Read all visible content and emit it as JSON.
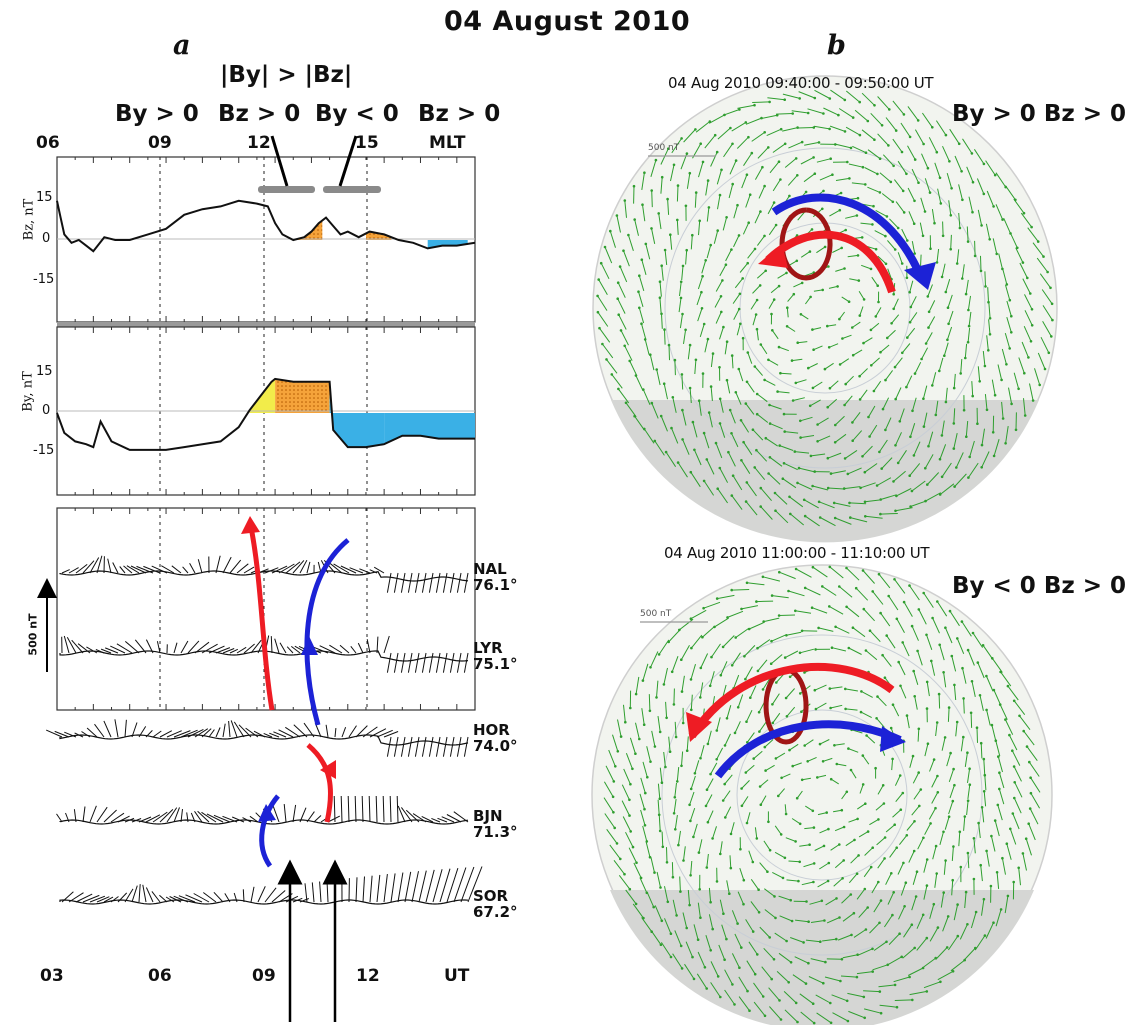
{
  "figure": {
    "title": "04 August 2010",
    "panel_a_letter": "a",
    "panel_b_letter": "b",
    "condition_header": "|By| > |Bz|",
    "conditions_a": [
      "By > 0",
      "Bz > 0",
      "By < 0",
      "Bz > 0"
    ],
    "mlt_ticks": [
      "06",
      "09",
      "12",
      "15",
      "MLT"
    ],
    "ut_ticks": [
      "03",
      "06",
      "09",
      "12",
      "UT"
    ],
    "scale_label": "500 nT",
    "polar_scale_label": "500 nT",
    "polar_top": {
      "time": "04 Aug 2010 09:40:00 - 09:50:00 UT",
      "condition": "By > 0  Bz > 0"
    },
    "polar_bottom": {
      "time": "04 Aug 2010 11:00:00 - 11:10:00 UT",
      "condition": "By < 0  Bz > 0"
    }
  },
  "colors": {
    "orange": "#f5a33a",
    "cyan": "#3ab0e6",
    "yellow": "#f2ec4a",
    "red_arrow": "#ee1c24",
    "blue_arrow": "#1c22d6",
    "green_vectors": "#2f9e2f",
    "dark_red_loop": "#a01515"
  },
  "chart_data": [
    {
      "type": "line",
      "name": "Bz",
      "ylabel": "Bz, nT",
      "yticks": [
        "15",
        "0",
        "-15"
      ],
      "ylim": [
        -25,
        25
      ],
      "x_ut_hours": [
        3.0,
        3.1,
        3.2,
        3.4,
        3.6,
        3.8,
        4.0,
        4.3,
        4.6,
        5.0,
        5.5,
        6.0,
        6.5,
        7.0,
        7.5,
        8.0,
        8.5,
        8.8,
        9.0,
        9.2,
        9.5,
        9.8,
        10.0,
        10.2,
        10.4,
        10.6,
        10.8,
        11.0,
        11.3,
        11.6,
        12.0,
        12.4,
        12.8,
        13.2,
        13.6,
        14.0,
        14.5
      ],
      "values": [
        14,
        8,
        2,
        -1,
        0,
        -2,
        -4,
        1,
        0,
        0,
        2,
        4,
        9,
        11,
        12,
        14,
        13,
        12,
        6,
        2,
        0,
        1,
        3,
        6,
        8,
        5,
        2,
        3,
        1,
        3,
        2,
        0,
        -1,
        -3,
        -2,
        -2,
        -1
      ],
      "shaded": [
        {
          "from_ut": 9.6,
          "to_ut": 10.3,
          "color": "orange"
        },
        {
          "from_ut": 11.5,
          "to_ut": 12.2,
          "color": "orange"
        },
        {
          "from_ut": 13.2,
          "to_ut": 14.3,
          "color": "cyan"
        }
      ],
      "periods_bars_ut": [
        [
          9.0,
          10.5
        ],
        [
          10.8,
          12.0
        ]
      ]
    },
    {
      "type": "line",
      "name": "By",
      "ylabel": "By, nT",
      "yticks": [
        "15",
        "0",
        "-15"
      ],
      "ylim": [
        -25,
        25
      ],
      "x_ut_hours": [
        3.0,
        3.2,
        3.5,
        3.8,
        4.0,
        4.2,
        4.5,
        5.0,
        5.5,
        6.0,
        6.5,
        7.0,
        7.5,
        8.0,
        8.3,
        8.6,
        8.9,
        9.0,
        9.5,
        10.0,
        10.5,
        10.6,
        11.0,
        11.5,
        12.0,
        12.5,
        13.0,
        13.5,
        14.0,
        14.5
      ],
      "values": [
        0,
        -7,
        -10,
        -11,
        -12,
        -3,
        -10,
        -13,
        -13,
        -13,
        -12,
        -11,
        -10,
        -5,
        1,
        6,
        11,
        12,
        11,
        11,
        11,
        -6,
        -12,
        -12,
        -11,
        -8,
        -8,
        -9,
        -9,
        -9
      ],
      "shaded": [
        {
          "from_ut": 8.3,
          "to_ut": 9.0,
          "color": "yellow"
        },
        {
          "from_ut": 9.0,
          "to_ut": 10.5,
          "color": "orange"
        },
        {
          "from_ut": 10.5,
          "to_ut": 12.0,
          "color": "cyan"
        },
        {
          "from_ut": 12.0,
          "to_ut": 14.5,
          "color": "cyan"
        }
      ]
    },
    {
      "type": "stackplot",
      "name": "magnetometer vectors",
      "scale": "500 nT",
      "stations": [
        {
          "code": "NAL",
          "lat": "76.1°"
        },
        {
          "code": "LYR",
          "lat": "75.1°"
        },
        {
          "code": "HOR",
          "lat": "74.0°"
        },
        {
          "code": "BJN",
          "lat": "71.3°"
        },
        {
          "code": "SOR",
          "lat": "67.2°"
        }
      ],
      "marked_times_ut": [
        9.7,
        11.0
      ]
    }
  ]
}
